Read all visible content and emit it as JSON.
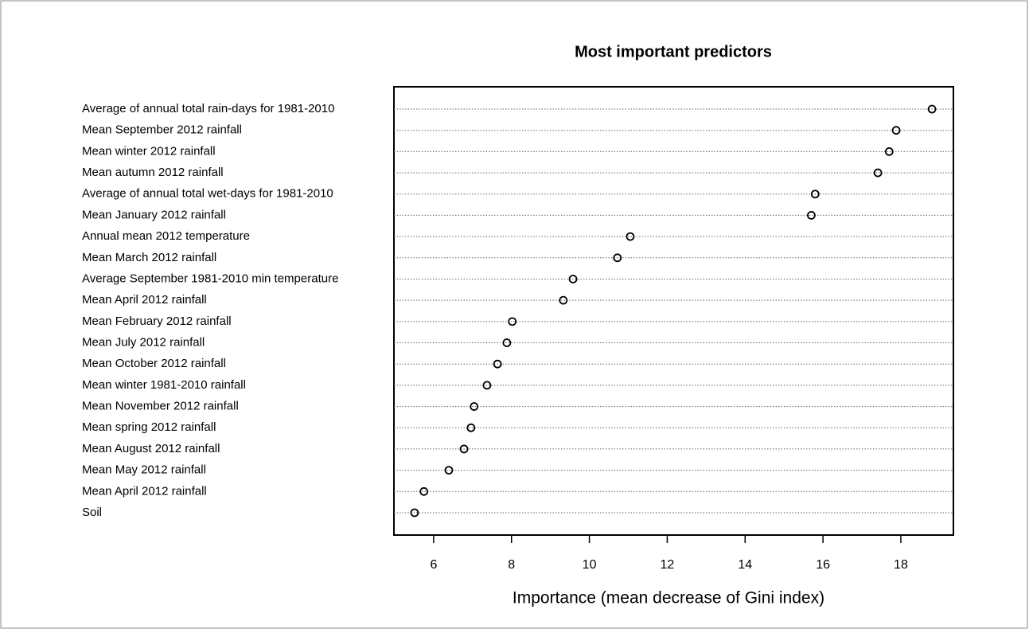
{
  "chart_data": {
    "type": "dot",
    "title": "Most important predictors",
    "x_label": "Importance (mean decrease of Gini index)",
    "categories": [
      "Average of annual total rain-days for 1981-2010",
      "Mean September 2012 rainfall",
      "Mean winter 2012 rainfall",
      "Mean autumn 2012 rainfall",
      "Average of annual total wet-days for 1981-2010",
      "Mean January 2012 rainfall",
      "Annual mean 2012 temperature",
      "Mean March 2012 rainfall",
      "Average September 1981-2010 min temperature",
      "Mean April 2012 rainfall",
      "Mean February 2012 rainfall",
      "Mean July 2012 rainfall",
      "Mean October 2012 rainfall",
      "Mean winter 1981-2010 rainfall",
      "Mean November 2012 rainfall",
      "Mean spring 2012 rainfall",
      "Mean August 2012 rainfall",
      "Mean May 2012 rainfall",
      "Mean April 2012 rainfall",
      "Soil"
    ],
    "values": [
      18.8,
      17.88,
      17.7,
      17.41,
      15.8,
      15.7,
      11.05,
      10.72,
      9.58,
      9.33,
      8.02,
      7.88,
      7.64,
      7.37,
      7.04,
      6.96,
      6.78,
      6.39,
      5.75,
      5.51
    ],
    "color": "#000000",
    "xlim": [
      4.98,
      19.35
    ],
    "xticks": [
      6,
      8,
      10,
      12,
      14,
      16,
      18
    ]
  }
}
